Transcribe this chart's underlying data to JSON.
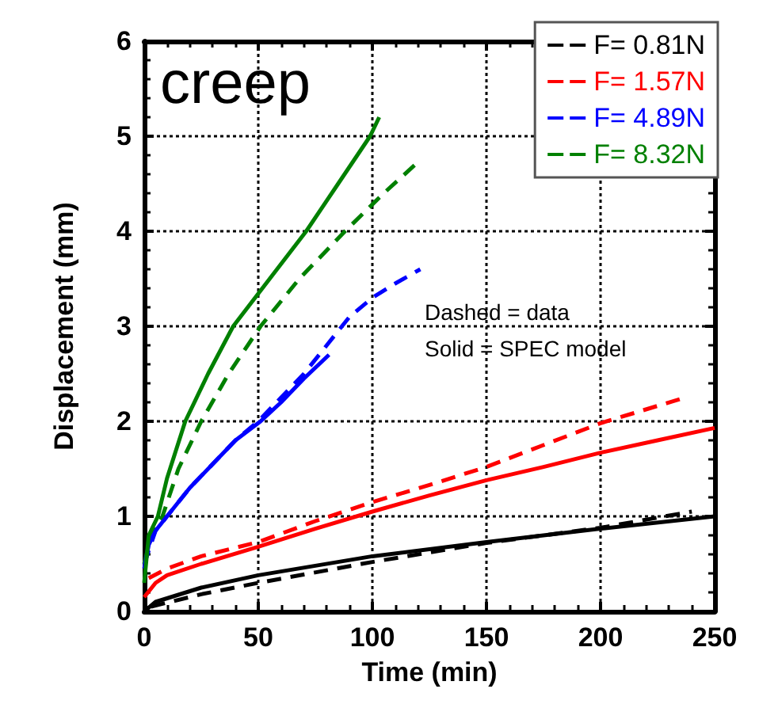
{
  "chart_data": {
    "type": "line",
    "xlabel": "Time (min)",
    "ylabel": "Displacement (mm)",
    "annotations": [
      "creep",
      "Dashed = data",
      "Solid = SPEC model"
    ],
    "xlim": [
      0,
      250
    ],
    "xticks": [
      0,
      50,
      100,
      150,
      200,
      250
    ],
    "ylim": [
      0,
      6
    ],
    "yticks": [
      0,
      1,
      2,
      3,
      4,
      5,
      6
    ],
    "grid": true,
    "legend": "top right",
    "marker": "none",
    "series": [
      {
        "name": "F= 0.81N",
        "color": "#000000",
        "line_style": "dashed",
        "x": [
          3,
          25,
          50,
          100,
          150,
          200,
          240
        ],
        "values": [
          0.05,
          0.18,
          0.3,
          0.52,
          0.72,
          0.88,
          1.05
        ]
      },
      {
        "name": "F= 1.57N",
        "color": "#ff0000",
        "line_style": "dashed",
        "x": [
          2,
          10,
          25,
          50,
          75,
          100,
          125,
          150,
          175,
          200,
          237
        ],
        "values": [
          0.35,
          0.45,
          0.58,
          0.73,
          0.95,
          1.15,
          1.33,
          1.52,
          1.75,
          1.98,
          2.25
        ]
      },
      {
        "name": "F= 4.89N",
        "color": "#0000ff",
        "line_style": "dashed",
        "x": [
          0,
          5,
          10,
          20,
          30,
          40,
          50,
          60,
          70,
          80,
          90,
          100,
          110,
          121
        ],
        "values": [
          0.5,
          0.85,
          1.0,
          1.3,
          1.55,
          1.8,
          2.0,
          2.25,
          2.5,
          2.8,
          3.1,
          3.3,
          3.45,
          3.6
        ]
      },
      {
        "name": "F= 8.32N",
        "color": "#008000",
        "line_style": "dashed",
        "x": [
          0,
          3,
          8,
          15,
          25,
          37,
          51,
          68,
          88,
          105,
          121
        ],
        "values": [
          0.5,
          0.8,
          1.0,
          1.5,
          2.0,
          2.5,
          3.0,
          3.5,
          4.0,
          4.4,
          4.75
        ]
      },
      {
        "color": "#000000",
        "line_style": "solid",
        "x": [
          0,
          5,
          25,
          50,
          100,
          150,
          200,
          250
        ],
        "values": [
          0,
          0.1,
          0.25,
          0.38,
          0.58,
          0.73,
          0.87,
          1.0
        ]
      },
      {
        "color": "#ff0000",
        "line_style": "solid",
        "x": [
          0,
          5,
          10,
          25,
          50,
          75,
          100,
          125,
          150,
          175,
          200,
          225,
          250
        ],
        "values": [
          0.15,
          0.3,
          0.38,
          0.5,
          0.68,
          0.87,
          1.05,
          1.22,
          1.38,
          1.52,
          1.67,
          1.8,
          1.93
        ]
      },
      {
        "color": "#0000ff",
        "line_style": "solid",
        "x": [
          0,
          2,
          5,
          10,
          20,
          30,
          40,
          51,
          60,
          70,
          81
        ],
        "values": [
          0.45,
          0.7,
          0.85,
          1.0,
          1.3,
          1.55,
          1.8,
          2.0,
          2.2,
          2.45,
          2.7
        ]
      },
      {
        "color": "#008000",
        "line_style": "solid",
        "x": [
          0,
          2,
          6,
          10,
          18,
          28,
          39,
          55,
          71,
          85,
          99,
          103
        ],
        "values": [
          0.3,
          0.8,
          1.0,
          1.4,
          2.0,
          2.5,
          3.0,
          3.5,
          4.0,
          4.5,
          5.0,
          5.2
        ]
      }
    ]
  }
}
